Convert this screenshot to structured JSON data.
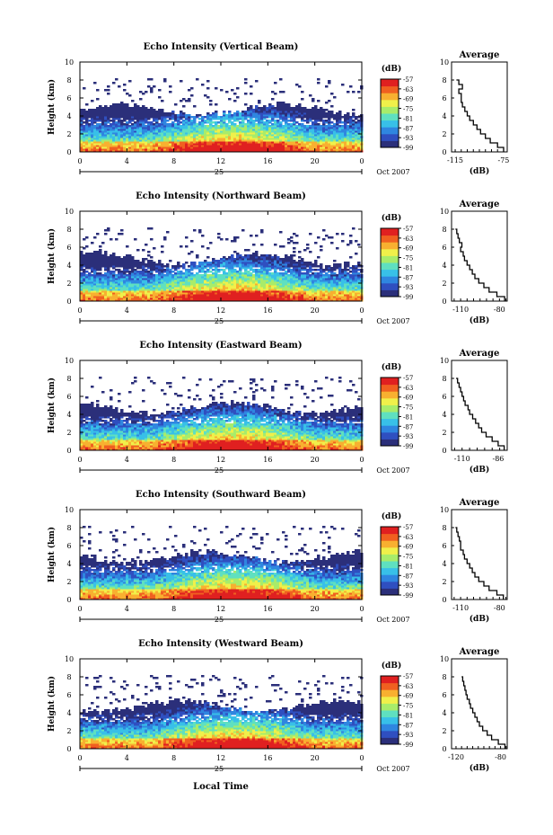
{
  "chart_data": [
    {
      "type": "heatmap",
      "title": "Echo Intensity (Vertical Beam)",
      "ylabel": "Height (km)",
      "ylim": [
        0,
        10
      ],
      "yticks": [
        "0",
        "2",
        "4",
        "6",
        "8",
        "10"
      ],
      "xlim": [
        0,
        24
      ],
      "xticks": [
        "0",
        "4",
        "8",
        "12",
        "16",
        "20",
        "0"
      ],
      "date_label": "25",
      "month_label": "Oct 2007",
      "colorbar": {
        "unit": "(dB)",
        "ticks": [
          "-57",
          "-63",
          "-69",
          "-75",
          "-81",
          "-87",
          "-93",
          "-99"
        ],
        "range": [
          -99,
          -57
        ]
      },
      "profile": {
        "title": "Average",
        "xlabel": "(dB)",
        "xticks": [
          "-115",
          "-75"
        ],
        "xlim": [
          -118,
          -72
        ],
        "heights": [
          0,
          0.5,
          1,
          1.5,
          2,
          2.5,
          3,
          3.5,
          4,
          4.5,
          5,
          5.5,
          6,
          6.5,
          7,
          7.5,
          8
        ],
        "values": [
          -75,
          -80,
          -86,
          -90,
          -94,
          -97,
          -100,
          -103,
          -105,
          -107,
          -109,
          -110,
          -110,
          -112,
          -109,
          -112,
          -114
        ]
      }
    },
    {
      "type": "heatmap",
      "title": "Echo Intensity (Northward Beam)",
      "ylabel": "Height (km)",
      "ylim": [
        0,
        10
      ],
      "yticks": [
        "0",
        "2",
        "4",
        "6",
        "8",
        "10"
      ],
      "xlim": [
        0,
        24
      ],
      "xticks": [
        "0",
        "4",
        "8",
        "12",
        "16",
        "20",
        "0"
      ],
      "date_label": "25",
      "month_label": "Oct 2007",
      "colorbar": {
        "unit": "(dB)",
        "ticks": [
          "-57",
          "-63",
          "-69",
          "-75",
          "-81",
          "-87",
          "-93",
          "-99"
        ],
        "range": [
          -99,
          -57
        ]
      },
      "profile": {
        "title": "Average",
        "xlabel": "(dB)",
        "xticks": [
          "-110",
          "-80"
        ],
        "xlim": [
          -117,
          -74
        ],
        "heights": [
          0,
          0.5,
          1,
          1.5,
          2,
          2.5,
          3,
          3.5,
          4,
          4.5,
          5,
          5.5,
          6,
          6.5,
          7,
          7.5,
          8
        ],
        "values": [
          -76,
          -82,
          -88,
          -92,
          -96,
          -99,
          -101,
          -103,
          -105,
          -107,
          -108,
          -110,
          -109,
          -111,
          -112,
          -113,
          -114
        ]
      }
    },
    {
      "type": "heatmap",
      "title": "Echo Intensity (Eastward Beam)",
      "ylabel": "Height (km)",
      "ylim": [
        0,
        10
      ],
      "yticks": [
        "0",
        "2",
        "4",
        "6",
        "8",
        "10"
      ],
      "xlim": [
        0,
        24
      ],
      "xticks": [
        "0",
        "4",
        "8",
        "12",
        "16",
        "20",
        "0"
      ],
      "date_label": "25",
      "month_label": "Oct 2007",
      "colorbar": {
        "unit": "(dB)",
        "ticks": [
          "-57",
          "-63",
          "-69",
          "-75",
          "-81",
          "-87",
          "-93",
          "-99"
        ],
        "range": [
          -99,
          -57
        ]
      },
      "profile": {
        "title": "Average",
        "xlabel": "(dB)",
        "xticks": [
          "-110",
          "-86"
        ],
        "xlim": [
          -117,
          -80
        ],
        "heights": [
          0,
          0.5,
          1,
          1.5,
          2,
          2.5,
          3,
          3.5,
          4,
          4.5,
          5,
          5.5,
          6,
          6.5,
          7,
          7.5,
          8
        ],
        "values": [
          -82,
          -86,
          -90,
          -94,
          -97,
          -99,
          -101,
          -103,
          -105,
          -106,
          -108,
          -109,
          -110,
          -111,
          -112,
          -113,
          -114
        ]
      }
    },
    {
      "type": "heatmap",
      "title": "Echo Intensity (Southward Beam)",
      "ylabel": "Height (km)",
      "ylim": [
        0,
        10
      ],
      "yticks": [
        "0",
        "2",
        "4",
        "6",
        "8",
        "10"
      ],
      "xlim": [
        0,
        24
      ],
      "xticks": [
        "0",
        "4",
        "8",
        "12",
        "16",
        "20",
        "0"
      ],
      "date_label": "25",
      "month_label": "Oct 2007",
      "colorbar": {
        "unit": "(dB)",
        "ticks": [
          "-57",
          "-63",
          "-69",
          "-75",
          "-81",
          "-87",
          "-93",
          "-99"
        ],
        "range": [
          -99,
          -57
        ]
      },
      "profile": {
        "title": "Average",
        "xlabel": "(dB)",
        "xticks": [
          "-110",
          "-80"
        ],
        "xlim": [
          -117,
          -74
        ],
        "heights": [
          0,
          0.5,
          1,
          1.5,
          2,
          2.5,
          3,
          3.5,
          4,
          4.5,
          5,
          5.5,
          6,
          6.5,
          7,
          7.5,
          8
        ],
        "values": [
          -77,
          -82,
          -88,
          -92,
          -96,
          -99,
          -101,
          -103,
          -105,
          -107,
          -108,
          -110,
          -110,
          -111,
          -112,
          -113,
          -114
        ]
      }
    },
    {
      "type": "heatmap",
      "title": "Echo Intensity (Westward Beam)",
      "ylabel": "Height (km)",
      "ylim": [
        0,
        10
      ],
      "yticks": [
        "0",
        "2",
        "4",
        "6",
        "8",
        "10"
      ],
      "xlim": [
        0,
        24
      ],
      "xticks": [
        "0",
        "4",
        "8",
        "12",
        "16",
        "20",
        "0"
      ],
      "date_label": "25",
      "month_label": "Oct 2007",
      "colorbar": {
        "unit": "(dB)",
        "ticks": [
          "-57",
          "-63",
          "-69",
          "-75",
          "-81",
          "-87",
          "-93",
          "-99"
        ],
        "range": [
          -99,
          -57
        ]
      },
      "profile": {
        "title": "Average",
        "xlabel": "(dB)",
        "xticks": [
          "-120",
          "-80"
        ],
        "xlim": [
          -124,
          -74
        ],
        "heights": [
          0,
          0.5,
          1,
          1.5,
          2,
          2.5,
          3,
          3.5,
          4,
          4.5,
          5,
          5.5,
          6,
          6.5,
          7,
          7.5,
          8
        ],
        "values": [
          -76,
          -82,
          -88,
          -92,
          -96,
          -99,
          -101,
          -103,
          -105,
          -107,
          -108,
          -110,
          -111,
          -112,
          -113,
          -114,
          -115
        ]
      }
    }
  ],
  "xlabel": "Local Time",
  "colors": [
    "#2b2f7a",
    "#2f4fc0",
    "#2f86e0",
    "#38c0e8",
    "#5fe0c0",
    "#a8ec6a",
    "#f0f04a",
    "#f8b030",
    "#f06020",
    "#e02020"
  ]
}
